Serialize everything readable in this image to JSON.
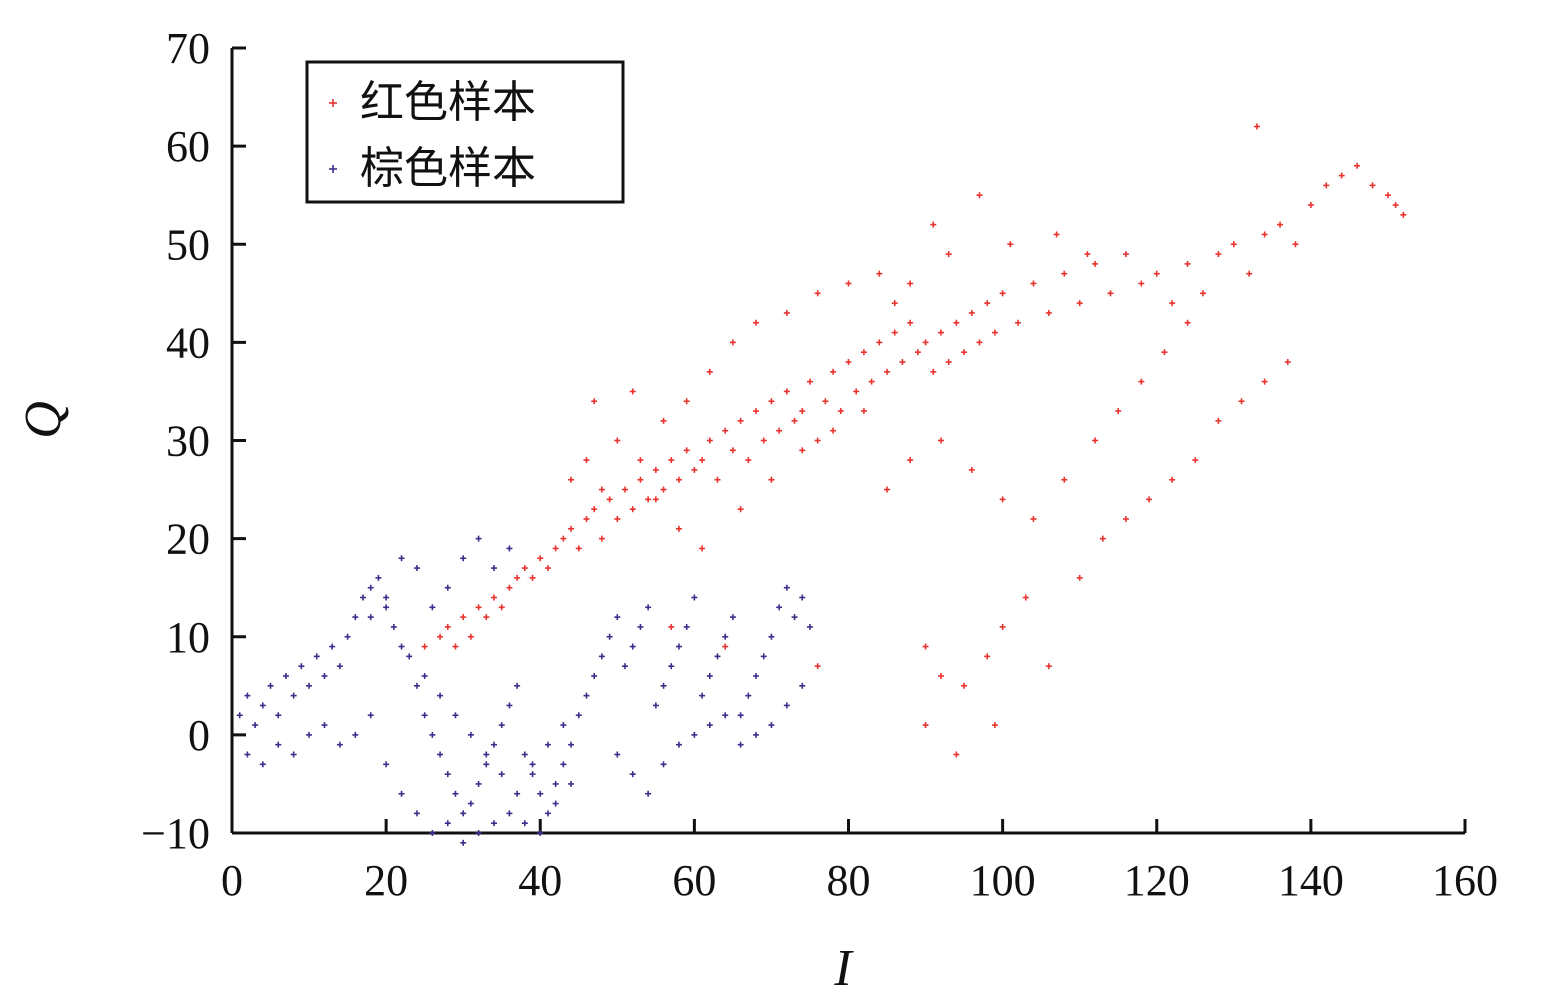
{
  "chart_data": {
    "type": "scatter",
    "xlabel": "I",
    "ylabel": "Q",
    "xlim": [
      0,
      160
    ],
    "ylim": [
      -10,
      70
    ],
    "xticks": [
      0,
      20,
      40,
      60,
      80,
      100,
      120,
      140,
      160
    ],
    "yticks": [
      -10,
      0,
      10,
      20,
      30,
      40,
      50,
      60,
      70
    ],
    "grid": false,
    "legend": "top-left",
    "series": [
      {
        "name": "红色样本",
        "color": "#e8332f",
        "marker": "plus",
        "points": [
          [
            25,
            9
          ],
          [
            27,
            10
          ],
          [
            28,
            11
          ],
          [
            29,
            9
          ],
          [
            30,
            12
          ],
          [
            31,
            10
          ],
          [
            32,
            13
          ],
          [
            33,
            12
          ],
          [
            34,
            14
          ],
          [
            35,
            13
          ],
          [
            36,
            15
          ],
          [
            37,
            16
          ],
          [
            38,
            17
          ],
          [
            39,
            16
          ],
          [
            40,
            18
          ],
          [
            41,
            17
          ],
          [
            42,
            19
          ],
          [
            43,
            20
          ],
          [
            44,
            21
          ],
          [
            45,
            19
          ],
          [
            46,
            22
          ],
          [
            47,
            23
          ],
          [
            48,
            20
          ],
          [
            49,
            24
          ],
          [
            50,
            22
          ],
          [
            51,
            25
          ],
          [
            52,
            23
          ],
          [
            53,
            26
          ],
          [
            54,
            24
          ],
          [
            55,
            27
          ],
          [
            56,
            25
          ],
          [
            57,
            28
          ],
          [
            58,
            26
          ],
          [
            59,
            29
          ],
          [
            60,
            27
          ],
          [
            61,
            28
          ],
          [
            62,
            30
          ],
          [
            63,
            26
          ],
          [
            64,
            31
          ],
          [
            65,
            29
          ],
          [
            66,
            32
          ],
          [
            67,
            28
          ],
          [
            68,
            33
          ],
          [
            69,
            30
          ],
          [
            70,
            34
          ],
          [
            71,
            31
          ],
          [
            72,
            35
          ],
          [
            73,
            32
          ],
          [
            74,
            33
          ],
          [
            75,
            36
          ],
          [
            76,
            30
          ],
          [
            77,
            34
          ],
          [
            78,
            37
          ],
          [
            79,
            33
          ],
          [
            80,
            38
          ],
          [
            81,
            35
          ],
          [
            82,
            39
          ],
          [
            83,
            36
          ],
          [
            84,
            40
          ],
          [
            85,
            37
          ],
          [
            86,
            41
          ],
          [
            87,
            38
          ],
          [
            88,
            42
          ],
          [
            89,
            39
          ],
          [
            90,
            40
          ],
          [
            91,
            37
          ],
          [
            92,
            41
          ],
          [
            93,
            38
          ],
          [
            94,
            42
          ],
          [
            95,
            39
          ],
          [
            96,
            43
          ],
          [
            97,
            40
          ],
          [
            98,
            44
          ],
          [
            99,
            41
          ],
          [
            100,
            45
          ],
          [
            102,
            42
          ],
          [
            104,
            46
          ],
          [
            106,
            43
          ],
          [
            108,
            47
          ],
          [
            110,
            44
          ],
          [
            112,
            48
          ],
          [
            114,
            45
          ],
          [
            116,
            49
          ],
          [
            118,
            46
          ],
          [
            120,
            47
          ],
          [
            122,
            44
          ],
          [
            124,
            48
          ],
          [
            126,
            45
          ],
          [
            128,
            49
          ],
          [
            130,
            50
          ],
          [
            132,
            47
          ],
          [
            134,
            51
          ],
          [
            136,
            52
          ],
          [
            138,
            50
          ],
          [
            140,
            54
          ],
          [
            142,
            56
          ],
          [
            144,
            57
          ],
          [
            146,
            58
          ],
          [
            148,
            56
          ],
          [
            150,
            55
          ],
          [
            151,
            54
          ],
          [
            152,
            53
          ],
          [
            133,
            62
          ],
          [
            97,
            55
          ],
          [
            91,
            52
          ],
          [
            47,
            34
          ],
          [
            52,
            35
          ],
          [
            57,
            11
          ],
          [
            64,
            9
          ],
          [
            76,
            7
          ],
          [
            90,
            9
          ],
          [
            92,
            6
          ],
          [
            95,
            5
          ],
          [
            98,
            8
          ],
          [
            100,
            11
          ],
          [
            103,
            14
          ],
          [
            106,
            7
          ],
          [
            110,
            16
          ],
          [
            113,
            20
          ],
          [
            116,
            22
          ],
          [
            119,
            24
          ],
          [
            122,
            26
          ],
          [
            125,
            28
          ],
          [
            128,
            32
          ],
          [
            131,
            34
          ],
          [
            134,
            36
          ],
          [
            137,
            38
          ],
          [
            90,
            1
          ],
          [
            99,
            1
          ],
          [
            94,
            -2
          ],
          [
            85,
            25
          ],
          [
            88,
            28
          ],
          [
            92,
            30
          ],
          [
            96,
            27
          ],
          [
            100,
            24
          ],
          [
            104,
            22
          ],
          [
            108,
            26
          ],
          [
            112,
            30
          ],
          [
            115,
            33
          ],
          [
            118,
            36
          ],
          [
            121,
            39
          ],
          [
            124,
            42
          ],
          [
            55,
            24
          ],
          [
            58,
            21
          ],
          [
            61,
            19
          ],
          [
            66,
            23
          ],
          [
            70,
            26
          ],
          [
            74,
            29
          ],
          [
            78,
            31
          ],
          [
            82,
            33
          ],
          [
            44,
            26
          ],
          [
            46,
            28
          ],
          [
            48,
            25
          ],
          [
            50,
            30
          ],
          [
            53,
            28
          ],
          [
            56,
            32
          ],
          [
            59,
            34
          ],
          [
            62,
            37
          ],
          [
            65,
            40
          ],
          [
            68,
            42
          ],
          [
            72,
            43
          ],
          [
            76,
            45
          ],
          [
            80,
            46
          ],
          [
            84,
            47
          ],
          [
            86,
            44
          ],
          [
            88,
            46
          ],
          [
            93,
            49
          ],
          [
            101,
            50
          ],
          [
            107,
            51
          ],
          [
            111,
            49
          ]
        ]
      },
      {
        "name": "棕色样本",
        "color": "#3d2e8c",
        "marker": "plus",
        "points": [
          [
            1,
            2
          ],
          [
            2,
            4
          ],
          [
            3,
            1
          ],
          [
            4,
            3
          ],
          [
            5,
            5
          ],
          [
            6,
            2
          ],
          [
            7,
            6
          ],
          [
            8,
            4
          ],
          [
            9,
            7
          ],
          [
            10,
            5
          ],
          [
            11,
            8
          ],
          [
            12,
            6
          ],
          [
            13,
            9
          ],
          [
            14,
            7
          ],
          [
            15,
            10
          ],
          [
            16,
            12
          ],
          [
            17,
            14
          ],
          [
            18,
            15
          ],
          [
            19,
            16
          ],
          [
            20,
            13
          ],
          [
            21,
            11
          ],
          [
            22,
            9
          ],
          [
            23,
            8
          ],
          [
            24,
            5
          ],
          [
            25,
            2
          ],
          [
            26,
            0
          ],
          [
            27,
            -2
          ],
          [
            28,
            -4
          ],
          [
            29,
            -6
          ],
          [
            30,
            -8
          ],
          [
            31,
            -7
          ],
          [
            32,
            -5
          ],
          [
            33,
            -3
          ],
          [
            34,
            -1
          ],
          [
            35,
            1
          ],
          [
            36,
            3
          ],
          [
            37,
            5
          ],
          [
            38,
            -2
          ],
          [
            39,
            -4
          ],
          [
            40,
            -6
          ],
          [
            41,
            -8
          ],
          [
            42,
            -5
          ],
          [
            43,
            -3
          ],
          [
            44,
            -1
          ],
          [
            45,
            2
          ],
          [
            46,
            4
          ],
          [
            47,
            6
          ],
          [
            48,
            8
          ],
          [
            49,
            10
          ],
          [
            50,
            12
          ],
          [
            51,
            7
          ],
          [
            52,
            9
          ],
          [
            53,
            11
          ],
          [
            54,
            13
          ],
          [
            55,
            3
          ],
          [
            56,
            5
          ],
          [
            57,
            7
          ],
          [
            58,
            9
          ],
          [
            59,
            11
          ],
          [
            60,
            14
          ],
          [
            61,
            4
          ],
          [
            62,
            6
          ],
          [
            63,
            8
          ],
          [
            64,
            10
          ],
          [
            65,
            12
          ],
          [
            66,
            2
          ],
          [
            67,
            4
          ],
          [
            68,
            6
          ],
          [
            69,
            8
          ],
          [
            70,
            10
          ],
          [
            71,
            13
          ],
          [
            72,
            15
          ],
          [
            73,
            12
          ],
          [
            74,
            14
          ],
          [
            75,
            11
          ],
          [
            20,
            -3
          ],
          [
            22,
            -6
          ],
          [
            24,
            -8
          ],
          [
            26,
            -10
          ],
          [
            28,
            -9
          ],
          [
            30,
            -11
          ],
          [
            32,
            -10
          ],
          [
            34,
            -9
          ],
          [
            36,
            -8
          ],
          [
            38,
            -9
          ],
          [
            40,
            -10
          ],
          [
            42,
            -7
          ],
          [
            44,
            -5
          ],
          [
            18,
            2
          ],
          [
            16,
            0
          ],
          [
            14,
            -1
          ],
          [
            12,
            1
          ],
          [
            10,
            0
          ],
          [
            8,
            -2
          ],
          [
            6,
            -1
          ],
          [
            4,
            -3
          ],
          [
            2,
            -2
          ],
          [
            30,
            18
          ],
          [
            32,
            20
          ],
          [
            34,
            17
          ],
          [
            36,
            19
          ],
          [
            28,
            15
          ],
          [
            26,
            13
          ],
          [
            24,
            17
          ],
          [
            22,
            18
          ],
          [
            20,
            14
          ],
          [
            18,
            12
          ],
          [
            50,
            -2
          ],
          [
            52,
            -4
          ],
          [
            54,
            -6
          ],
          [
            56,
            -3
          ],
          [
            58,
            -1
          ],
          [
            60,
            0
          ],
          [
            62,
            1
          ],
          [
            64,
            2
          ],
          [
            66,
            -1
          ],
          [
            68,
            0
          ],
          [
            70,
            1
          ],
          [
            72,
            3
          ],
          [
            74,
            5
          ],
          [
            31,
            0
          ],
          [
            33,
            -2
          ],
          [
            35,
            -4
          ],
          [
            37,
            -6
          ],
          [
            39,
            -3
          ],
          [
            41,
            -1
          ],
          [
            43,
            1
          ],
          [
            29,
            2
          ],
          [
            27,
            4
          ],
          [
            25,
            6
          ]
        ]
      }
    ]
  }
}
